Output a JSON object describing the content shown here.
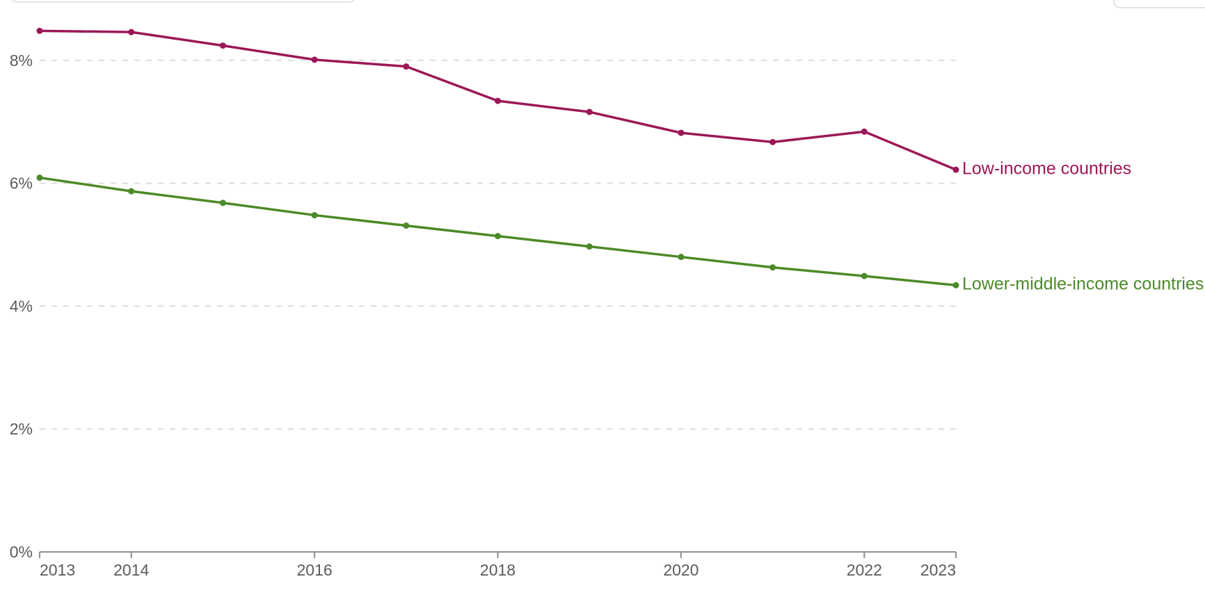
{
  "colors": {
    "background": "#ffffff",
    "axis_line": "#8f8f8f",
    "axis_text": "#5b5b5b",
    "gridline": "#dcdcdc",
    "card_border": "#e3e3e3",
    "series_low_income": "#9c1757",
    "series_lower_middle_income": "#4c8a28"
  },
  "top_chrome": {
    "left_card_visible": true,
    "right_card_visible": true
  },
  "chart_data": {
    "type": "line",
    "title": "",
    "xlabel": "",
    "ylabel": "",
    "x": [
      2013,
      2014,
      2015,
      2016,
      2017,
      2018,
      2019,
      2020,
      2021,
      2022,
      2023
    ],
    "series": [
      {
        "name": "Low-income countries",
        "color": "#9c1757",
        "values": [
          8.48,
          8.46,
          8.24,
          8.01,
          7.9,
          7.34,
          7.16,
          6.82,
          6.67,
          6.84,
          6.22
        ]
      },
      {
        "name": "Lower-middle-income countries",
        "color": "#4c8a28",
        "values": [
          6.09,
          5.87,
          5.68,
          5.48,
          5.31,
          5.14,
          4.97,
          4.8,
          4.63,
          4.49,
          4.34
        ]
      }
    ],
    "ylim": [
      0,
      9
    ],
    "yticks": [
      {
        "value": 0,
        "label": "0%"
      },
      {
        "value": 2,
        "label": "2%"
      },
      {
        "value": 4,
        "label": "4%"
      },
      {
        "value": 6,
        "label": "6%"
      },
      {
        "value": 8,
        "label": "8%"
      }
    ],
    "xticks_labeled": [
      2013,
      2014,
      2016,
      2018,
      2020,
      2022,
      2023
    ],
    "grid": "horizontal-dashed",
    "legend_position": "line-end-labels",
    "marker": "circle"
  }
}
